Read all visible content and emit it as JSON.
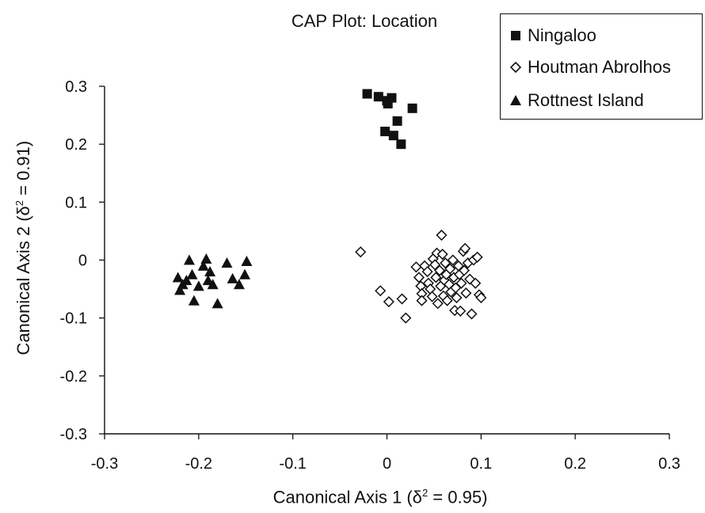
{
  "chart_data": {
    "type": "scatter",
    "title": "CAP Plot: Location",
    "xlabel_main": "Canonical Axis 1 (δ",
    "xlabel_sup": "2",
    "xlabel_tail": " = 0.95)",
    "ylabel_main": "Canonical Axis 2 (δ",
    "ylabel_sup": "2",
    "ylabel_tail": " = 0.91)",
    "xlim": [
      -0.3,
      0.3
    ],
    "ylim": [
      -0.3,
      0.3
    ],
    "xticks": [
      "-0.3",
      "-0.2",
      "-0.1",
      "0",
      "0.1",
      "0.2",
      "0.3"
    ],
    "yticks": [
      "0.3",
      "0.2",
      "0.1",
      "0",
      "-0.1",
      "-0.2",
      "-0.3"
    ],
    "grid": false,
    "legend_position": "top-right",
    "series": [
      {
        "name": "Ningaloo",
        "marker": "filled-square",
        "points": [
          [
            -0.021,
            0.287
          ],
          [
            -0.009,
            0.282
          ],
          [
            0.0,
            0.275
          ],
          [
            0.005,
            0.28
          ],
          [
            0.001,
            0.27
          ],
          [
            0.027,
            0.262
          ],
          [
            0.011,
            0.24
          ],
          [
            -0.002,
            0.222
          ],
          [
            0.007,
            0.215
          ],
          [
            0.015,
            0.2
          ]
        ]
      },
      {
        "name": "Houtman Abrolhos",
        "marker": "open-diamond",
        "points": [
          [
            -0.028,
            0.014
          ],
          [
            -0.007,
            -0.053
          ],
          [
            0.002,
            -0.072
          ],
          [
            0.016,
            -0.067
          ],
          [
            0.02,
            -0.1
          ],
          [
            0.031,
            -0.012
          ],
          [
            0.034,
            -0.03
          ],
          [
            0.036,
            -0.045
          ],
          [
            0.037,
            -0.058
          ],
          [
            0.037,
            -0.07
          ],
          [
            0.04,
            -0.01
          ],
          [
            0.043,
            -0.02
          ],
          [
            0.044,
            -0.04
          ],
          [
            0.046,
            -0.05
          ],
          [
            0.048,
            -0.063
          ],
          [
            0.049,
            0.002
          ],
          [
            0.051,
            -0.008
          ],
          [
            0.052,
            -0.03
          ],
          [
            0.053,
            0.012
          ],
          [
            0.054,
            -0.075
          ],
          [
            0.056,
            -0.018
          ],
          [
            0.057,
            -0.045
          ],
          [
            0.058,
            0.043
          ],
          [
            0.059,
            0.01
          ],
          [
            0.06,
            -0.062
          ],
          [
            0.061,
            -0.035
          ],
          [
            0.062,
            -0.005
          ],
          [
            0.063,
            -0.025
          ],
          [
            0.064,
            -0.07
          ],
          [
            0.066,
            -0.042
          ],
          [
            0.067,
            -0.015
          ],
          [
            0.068,
            -0.055
          ],
          [
            0.07,
            0.0
          ],
          [
            0.071,
            -0.03
          ],
          [
            0.072,
            -0.087
          ],
          [
            0.073,
            -0.048
          ],
          [
            0.074,
            -0.065
          ],
          [
            0.076,
            -0.01
          ],
          [
            0.077,
            -0.025
          ],
          [
            0.078,
            -0.088
          ],
          [
            0.079,
            -0.04
          ],
          [
            0.081,
            0.015
          ],
          [
            0.082,
            -0.018
          ],
          [
            0.083,
            0.02
          ],
          [
            0.084,
            -0.057
          ],
          [
            0.086,
            -0.005
          ],
          [
            0.088,
            -0.033
          ],
          [
            0.09,
            -0.093
          ],
          [
            0.092,
            0.0
          ],
          [
            0.094,
            -0.04
          ],
          [
            0.096,
            0.005
          ],
          [
            0.098,
            -0.06
          ],
          [
            0.1,
            -0.065
          ]
        ]
      },
      {
        "name": "Rottnest Island",
        "marker": "filled-triangle",
        "points": [
          [
            -0.222,
            -0.03
          ],
          [
            -0.22,
            -0.052
          ],
          [
            -0.217,
            -0.042
          ],
          [
            -0.213,
            -0.035
          ],
          [
            -0.21,
            0.0
          ],
          [
            -0.207,
            -0.025
          ],
          [
            -0.205,
            -0.07
          ],
          [
            -0.2,
            -0.045
          ],
          [
            -0.195,
            -0.01
          ],
          [
            -0.192,
            0.002
          ],
          [
            -0.19,
            -0.035
          ],
          [
            -0.188,
            -0.02
          ],
          [
            -0.185,
            -0.042
          ],
          [
            -0.18,
            -0.075
          ],
          [
            -0.17,
            -0.005
          ],
          [
            -0.164,
            -0.032
          ],
          [
            -0.157,
            -0.042
          ],
          [
            -0.151,
            -0.025
          ],
          [
            -0.149,
            -0.002
          ]
        ]
      }
    ]
  }
}
